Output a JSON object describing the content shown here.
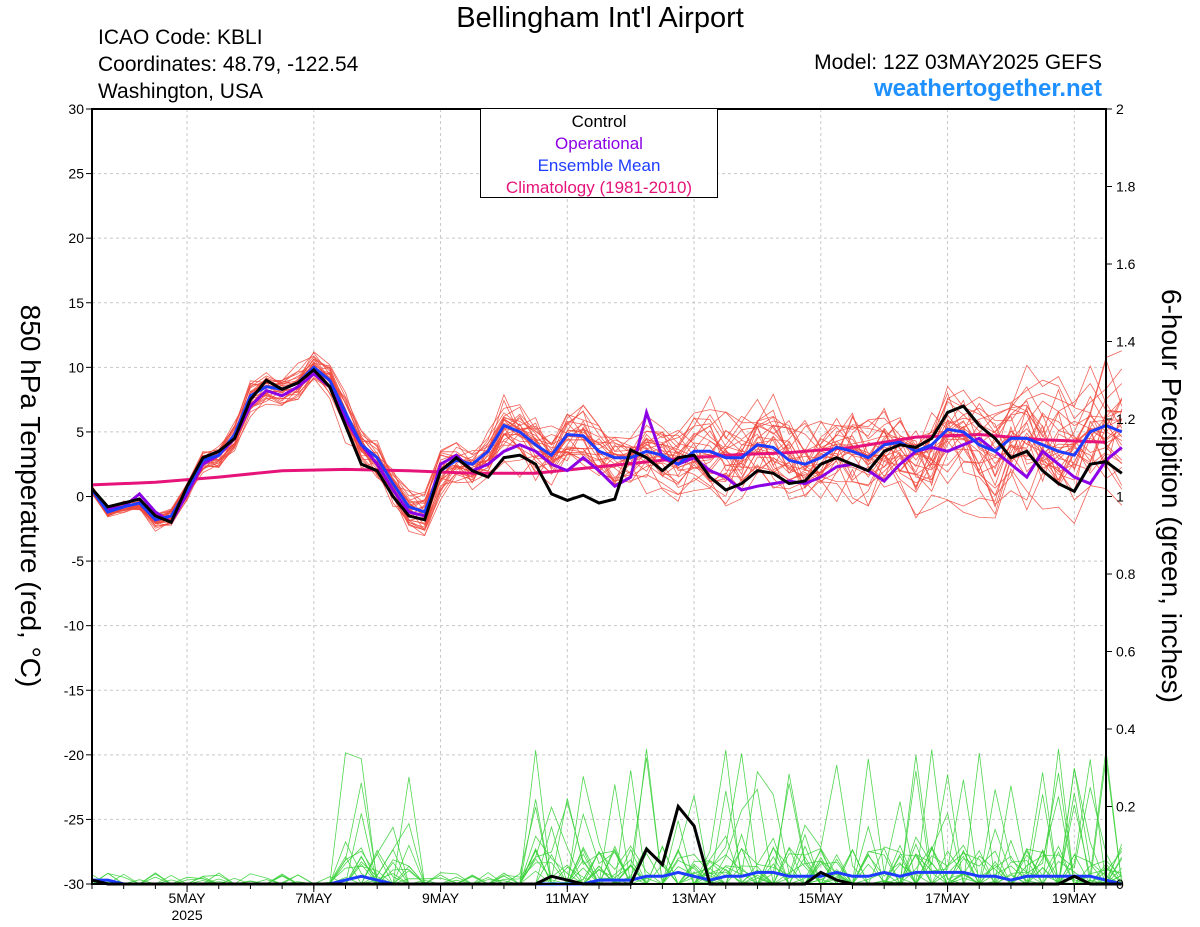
{
  "header": {
    "title": "Bellingham Int'l Airport",
    "icao": "ICAO Code: KBLI",
    "coordinates": "Coordinates: 48.79, -122.54",
    "location": "Washington, USA",
    "model": "Model: 12Z 03MAY2025 GEFS",
    "site": "weathertogether.net"
  },
  "colors": {
    "members_temp": "#f0483c",
    "members_precip": "#3cd23c",
    "control": "#000000",
    "operational": "#8c00e6",
    "ensemble_mean": "#1e3cff",
    "climatology": "#e6147a",
    "site_link": "#1e90ff"
  },
  "chart_data": {
    "type": "line",
    "ylabel": "850 hPa Temperature (red, °C)",
    "y2label": "6-hour Precipition (green, inches)",
    "ylim": [
      -30,
      30
    ],
    "y2lim": [
      0,
      2
    ],
    "yticks": [
      30,
      25,
      20,
      15,
      10,
      5,
      0,
      -5,
      -10,
      -15,
      -20,
      -25,
      -30
    ],
    "y2ticks": [
      2,
      1.8,
      1.6,
      1.4,
      1.2,
      1,
      0.8,
      0.6,
      0.4,
      0.2,
      0
    ],
    "x_unit": "days since 12Z 03MAY2025 (6-hour steps)",
    "xlim": [
      0,
      16
    ],
    "xtick_labels": [
      {
        "x": 1.5,
        "label": "5MAY",
        "sub": "2025"
      },
      {
        "x": 3.5,
        "label": "7MAY"
      },
      {
        "x": 5.5,
        "label": "9MAY"
      },
      {
        "x": 7.5,
        "label": "11MAY"
      },
      {
        "x": 9.5,
        "label": "13MAY"
      },
      {
        "x": 11.5,
        "label": "15MAY"
      },
      {
        "x": 13.5,
        "label": "17MAY"
      },
      {
        "x": 15.5,
        "label": "19MAY"
      }
    ],
    "legend": [
      "Control",
      "Operational",
      "Ensemble Mean",
      "Climatology (1981-2010)"
    ],
    "legend_placement": "top-center",
    "series": {
      "control_temp": [
        0.6,
        -0.8,
        -0.5,
        -0.2,
        -1.5,
        -2.0,
        0.8,
        3.0,
        3.5,
        4.5,
        7.5,
        9.0,
        8.3,
        8.8,
        9.8,
        8.5,
        5.5,
        2.5,
        2.0,
        0.0,
        -1.5,
        -1.8,
        2.0,
        3.0,
        2.0,
        1.5,
        3.0,
        3.2,
        2.5,
        0.2,
        -0.3,
        0.1,
        -0.5,
        -0.2,
        3.6,
        3.0,
        2.0,
        3.0,
        3.2,
        1.5,
        0.5,
        1.0,
        2.0,
        1.8,
        1.0,
        1.2,
        2.5,
        3.0,
        2.5,
        2.0,
        3.5,
        4.0,
        3.8,
        4.5,
        6.5,
        7.0,
        5.5,
        4.5,
        3.0,
        3.5,
        2.0,
        1.0,
        0.4,
        2.5,
        2.7,
        1.8
      ],
      "operational_temp": [
        0.5,
        -1.0,
        -0.8,
        0.2,
        -1.2,
        -2.0,
        0.2,
        2.5,
        3.2,
        4.5,
        7.0,
        8.2,
        7.8,
        8.5,
        9.5,
        8.5,
        6.0,
        4.0,
        2.5,
        0.5,
        -1.2,
        -1.5,
        2.5,
        3.2,
        2.0,
        2.5,
        3.5,
        4.0,
        3.5,
        2.5,
        2.0,
        3.0,
        2.0,
        0.8,
        1.5,
        6.5,
        3.0,
        2.5,
        3.0,
        2.0,
        1.5,
        0.5,
        0.8,
        1.0,
        1.2,
        1.0,
        1.5,
        2.3,
        2.5,
        2.0,
        1.2,
        2.5,
        3.5,
        3.8,
        3.5,
        4.0,
        4.5,
        3.5,
        2.5,
        1.5,
        3.5,
        2.5,
        1.5,
        1.0,
        2.8,
        3.8
      ],
      "mean_temp": [
        0.5,
        -1.2,
        -0.8,
        -0.5,
        -1.8,
        -1.5,
        0.5,
        2.8,
        3.2,
        4.8,
        7.8,
        8.5,
        8.3,
        8.8,
        10.0,
        9.0,
        6.5,
        4.0,
        3.0,
        1.0,
        -0.8,
        -1.2,
        2.0,
        2.8,
        2.5,
        3.5,
        5.5,
        5.0,
        4.0,
        3.2,
        4.8,
        4.7,
        3.5,
        3.0,
        3.0,
        3.5,
        3.2,
        2.5,
        3.5,
        3.5,
        3.0,
        3.0,
        4.0,
        3.8,
        2.8,
        2.5,
        3.0,
        3.8,
        3.5,
        3.0,
        4.0,
        4.2,
        3.5,
        4.0,
        5.2,
        5.0,
        4.0,
        3.5,
        4.5,
        4.5,
        4.0,
        3.5,
        3.2,
        5.0,
        5.5,
        5.0
      ],
      "climatology_temp": [
        [
          0,
          0.9
        ],
        [
          1,
          1.1
        ],
        [
          2,
          1.5
        ],
        [
          3,
          2.0
        ],
        [
          4,
          2.1
        ],
        [
          5,
          2.0
        ],
        [
          6,
          1.8
        ],
        [
          7,
          1.8
        ],
        [
          8,
          2.3
        ],
        [
          9,
          2.8
        ],
        [
          10,
          3.2
        ],
        [
          11,
          3.4
        ],
        [
          12,
          3.8
        ],
        [
          13,
          4.6
        ],
        [
          14,
          4.8
        ],
        [
          15,
          4.4
        ],
        [
          16,
          4.2
        ]
      ],
      "control_precip": [
        0.01,
        0,
        0,
        0,
        0,
        0,
        0,
        0,
        0,
        0,
        0,
        0,
        0,
        0,
        0,
        0,
        0,
        0,
        0,
        0,
        0,
        0,
        0,
        0,
        0,
        0,
        0,
        0,
        0,
        0.02,
        0.01,
        0,
        0,
        0,
        0,
        0.09,
        0.05,
        0.2,
        0.15,
        0,
        0,
        0,
        0,
        0,
        0,
        0,
        0.03,
        0.01,
        0,
        0,
        0,
        0,
        0,
        0,
        0,
        0,
        0,
        0,
        0,
        0,
        0,
        0,
        0.02,
        0,
        0,
        0
      ],
      "mean_precip": [
        0.01,
        0.01,
        0,
        0,
        0,
        0,
        0,
        0,
        0,
        0,
        0,
        0,
        0,
        0,
        0,
        0,
        0.01,
        0.02,
        0.01,
        0,
        0,
        0,
        0,
        0,
        0,
        0,
        0,
        0,
        0,
        0,
        0,
        0,
        0.01,
        0.01,
        0.01,
        0.02,
        0.02,
        0.03,
        0.02,
        0.01,
        0.02,
        0.02,
        0.03,
        0.03,
        0.02,
        0.02,
        0.02,
        0.03,
        0.02,
        0.02,
        0.03,
        0.02,
        0.03,
        0.03,
        0.03,
        0.03,
        0.02,
        0.02,
        0.01,
        0.02,
        0.02,
        0.02,
        0.02,
        0.02,
        0.01,
        0
      ]
    }
  }
}
